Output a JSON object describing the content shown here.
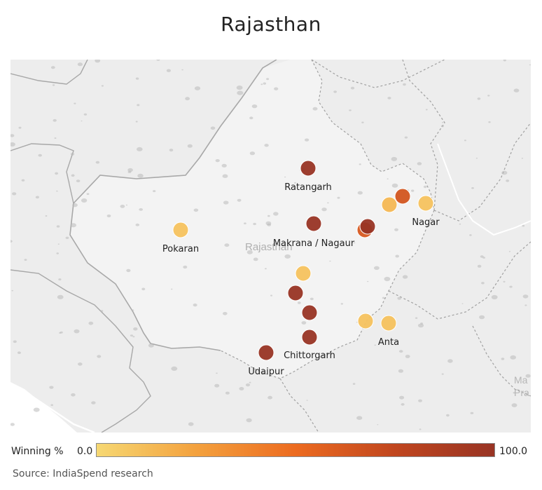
{
  "title": "Rajasthan",
  "map": {
    "region_label": "Rajasthan",
    "edge_label_1": "Ma",
    "edge_label_2": "Pra",
    "colors": {
      "background": "#ededed",
      "state_fill": "#f3f3f3",
      "border": "#a8a8a8",
      "district": "#b9b9b9",
      "text": "#222222"
    }
  },
  "markers": [
    {
      "label": "Ratangarh",
      "winning_pct": 100
    },
    {
      "label": "",
      "winning_pct": 65
    },
    {
      "label": "",
      "winning_pct": 15
    },
    {
      "label": "Nagar",
      "winning_pct": 10
    },
    {
      "label": "Makrana / Nagaur",
      "winning_pct": 100
    },
    {
      "label": "",
      "winning_pct": 62
    },
    {
      "label": "",
      "winning_pct": 100
    },
    {
      "label": "Pokaran",
      "winning_pct": 10
    },
    {
      "label": "",
      "winning_pct": 10
    },
    {
      "label": "",
      "winning_pct": 100
    },
    {
      "label": "",
      "winning_pct": 100
    },
    {
      "label": "",
      "winning_pct": 10
    },
    {
      "label": "Anta",
      "winning_pct": 10
    },
    {
      "label": "Chittorgarh",
      "winning_pct": 100
    },
    {
      "label": "Udaipur",
      "winning_pct": 100
    }
  ],
  "legend": {
    "title": "Winning %",
    "min_label": "0.0",
    "max_label": "100.0",
    "gradient": [
      "#f6d873",
      "#f3a13e",
      "#ec6b20",
      "#c0461f",
      "#983424"
    ]
  },
  "source": "Source: IndiaSpend research"
}
